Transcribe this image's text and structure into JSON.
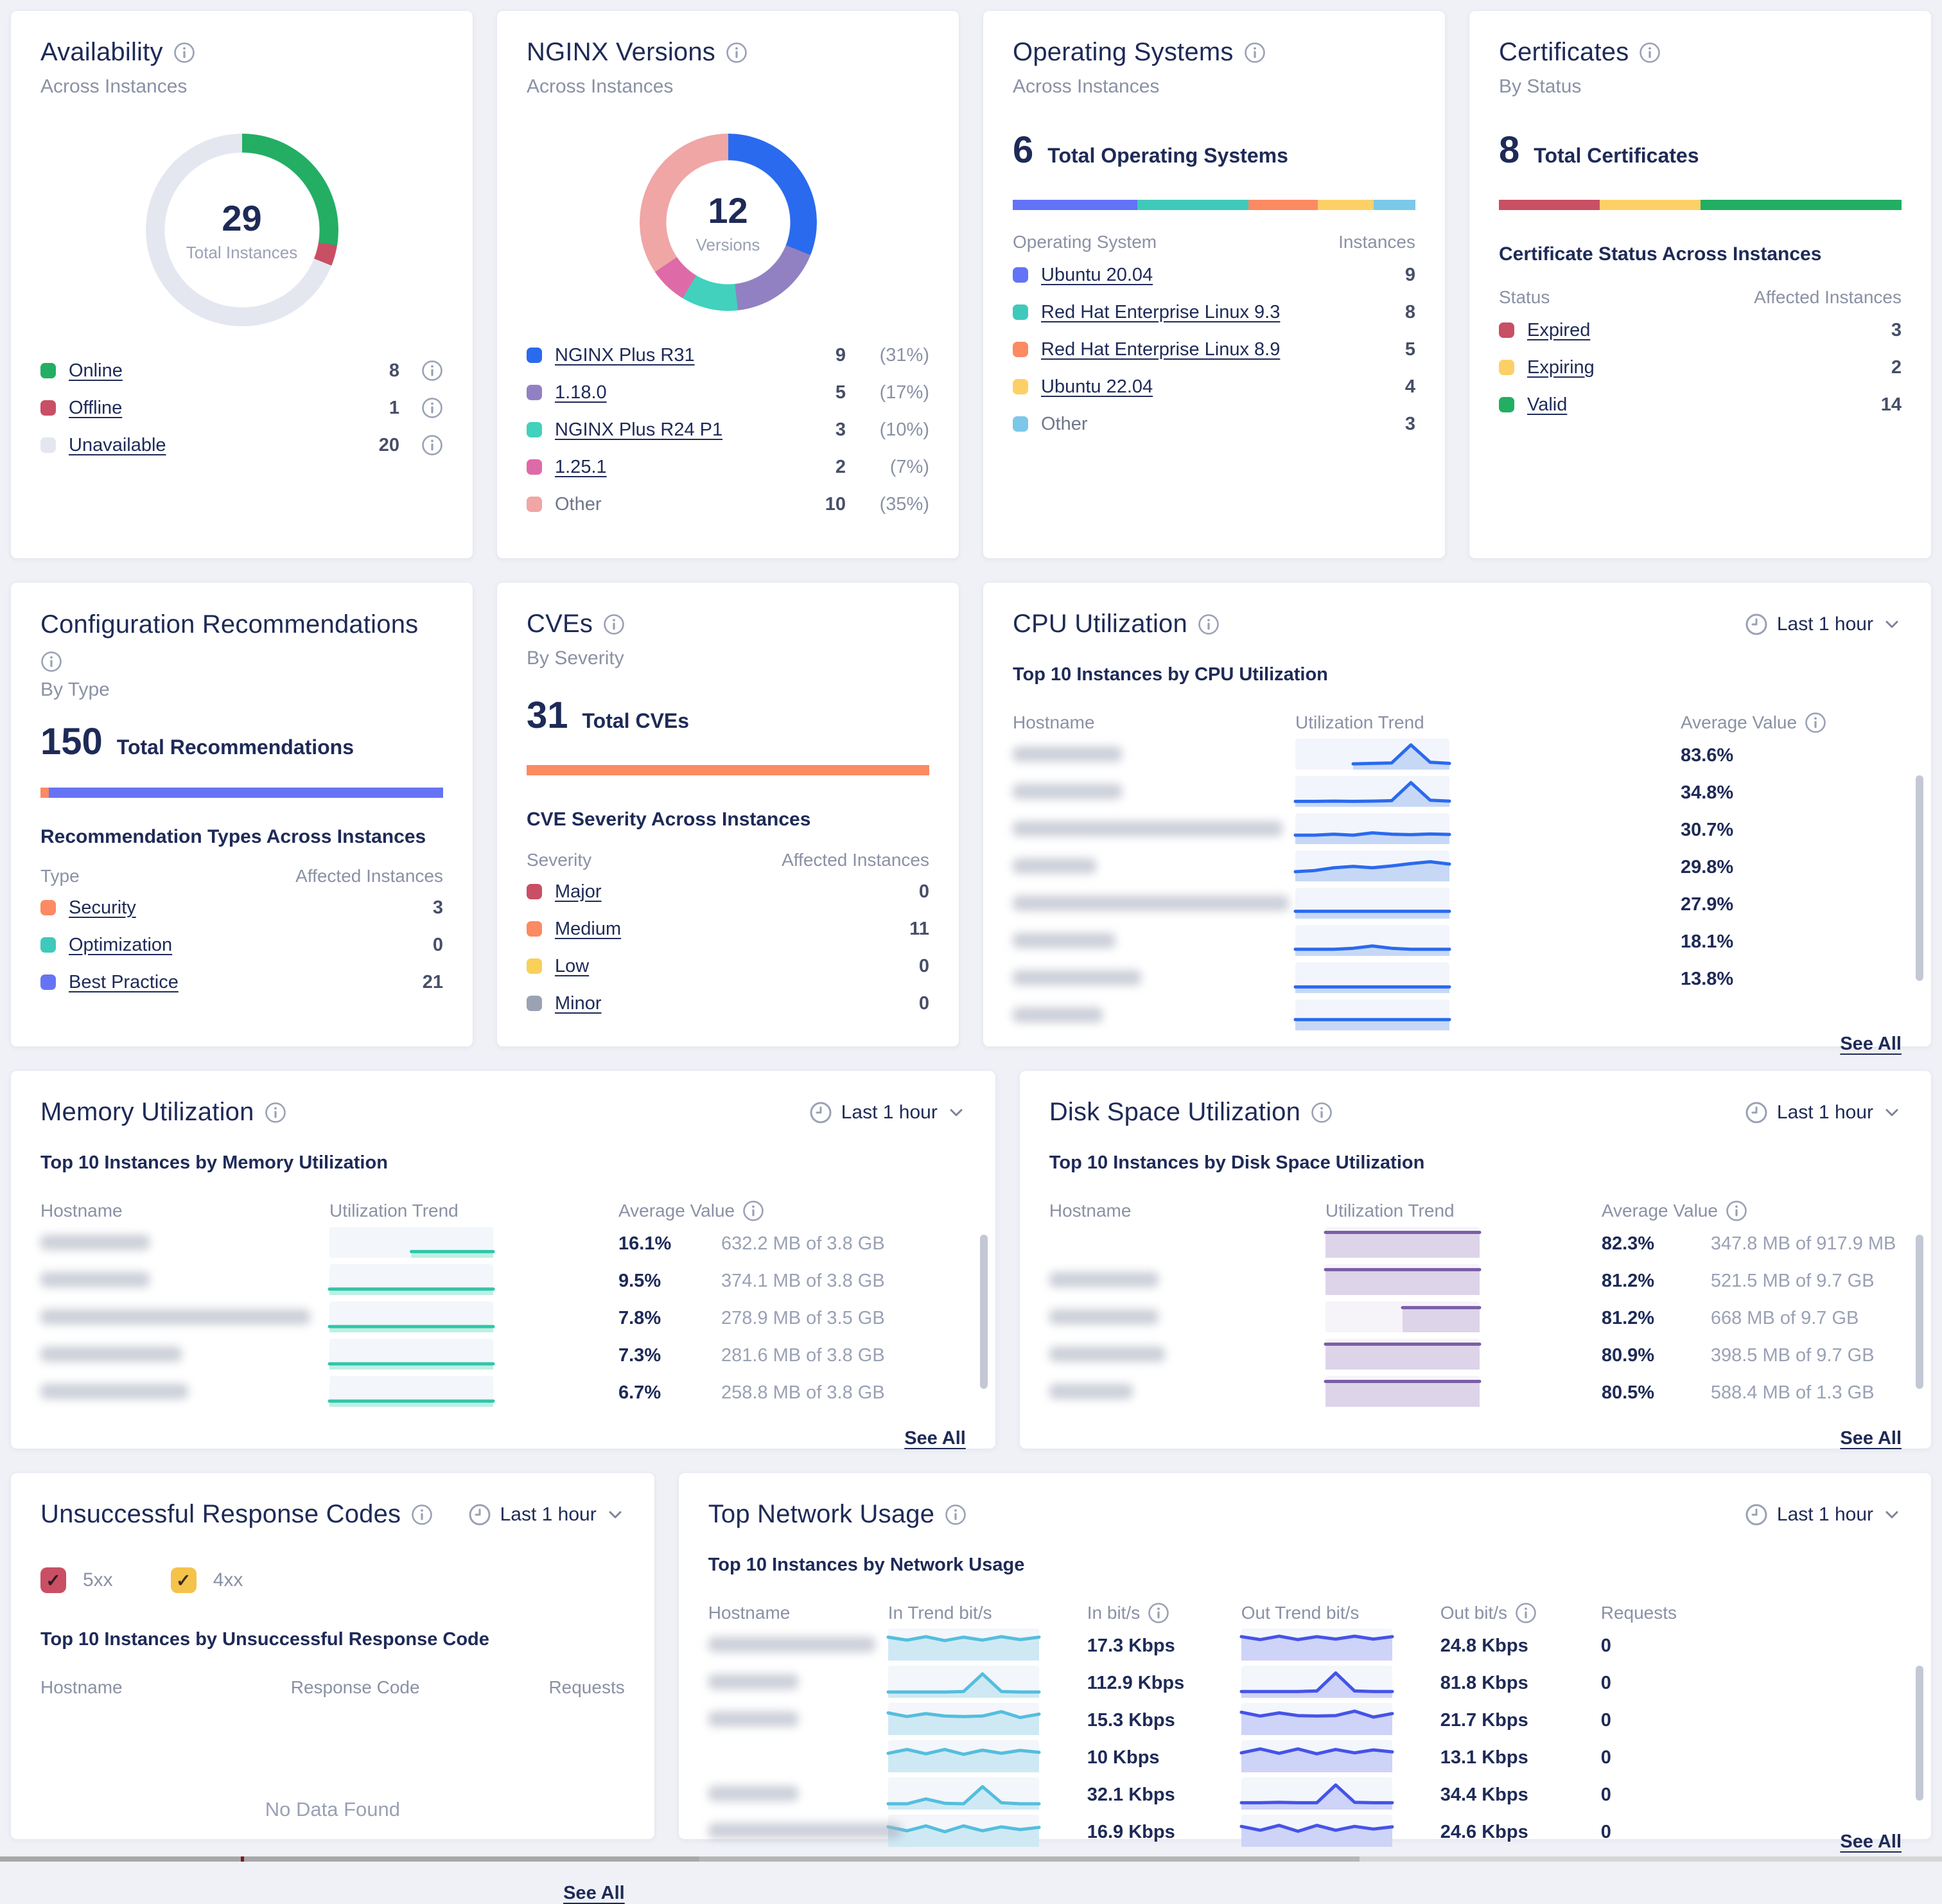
{
  "labels": {
    "see_all": "See All",
    "time_range": "Last 1 hour",
    "hostname": "Hostname",
    "utilization_trend": "Utilization Trend",
    "average_value": "Average Value",
    "no_data": "No Data Found"
  },
  "cards": {
    "availability": {
      "title": "Availability",
      "subtitle": "Across Instances",
      "total": "29",
      "total_label": "Total Instances",
      "chart_data": {
        "type": "donut",
        "segments": [
          {
            "label": "Online",
            "value": 8,
            "color": "#23ae64"
          },
          {
            "label": "Offline",
            "value": 1,
            "color": "#c94f64"
          },
          {
            "label": "Unavailable",
            "value": 20,
            "color": "#e4e7f0"
          }
        ]
      },
      "legend": [
        {
          "label": "Online",
          "value": "8",
          "color": "#23ae64",
          "link": true,
          "info": true
        },
        {
          "label": "Offline",
          "value": "1",
          "color": "#c94f64",
          "link": true,
          "info": true
        },
        {
          "label": "Unavailable",
          "value": "20",
          "color": "#e4e7f0",
          "link": true,
          "info": true
        }
      ]
    },
    "nginx_versions": {
      "title": "NGINX Versions",
      "subtitle": "Across Instances",
      "total": "12",
      "total_label": "Versions",
      "chart_data": {
        "type": "donut",
        "segments": [
          {
            "label": "NGINX Plus R31",
            "value": 9,
            "color": "#2a6aee"
          },
          {
            "label": "1.18.0",
            "value": 5,
            "color": "#9181c2"
          },
          {
            "label": "NGINX Plus R24 P1",
            "value": 3,
            "color": "#41d1bd"
          },
          {
            "label": "1.25.1",
            "value": 2,
            "color": "#df6aa8"
          },
          {
            "label": "Other",
            "value": 10,
            "color": "#efa6a5"
          }
        ]
      },
      "legend": [
        {
          "label": "NGINX Plus R31",
          "value": "9",
          "pct": "(31%)",
          "color": "#2a6aee",
          "link": true
        },
        {
          "label": "1.18.0",
          "value": "5",
          "pct": "(17%)",
          "color": "#9181c2",
          "link": true
        },
        {
          "label": "NGINX Plus R24 P1",
          "value": "3",
          "pct": "(10%)",
          "color": "#41d1bd",
          "link": true
        },
        {
          "label": "1.25.1",
          "value": "2",
          "pct": "(7%)",
          "color": "#df6aa8",
          "link": true
        },
        {
          "label": "Other",
          "value": "10",
          "pct": "(35%)",
          "color": "#efa6a5",
          "link": false
        }
      ]
    },
    "operating_systems": {
      "title": "Operating Systems",
      "subtitle": "Across Instances",
      "total": "6",
      "total_label": "Total Operating Systems",
      "columns": [
        "Operating System",
        "Instances"
      ],
      "chart_data": {
        "type": "stacked-bar",
        "segments": [
          {
            "label": "Ubuntu 20.04",
            "value": 9,
            "pct": 31.0,
            "color": "#6273f7"
          },
          {
            "label": "Red Hat Enterprise Linux 9.3",
            "value": 8,
            "pct": 27.6,
            "color": "#3fc9bb"
          },
          {
            "label": "Red Hat Enterprise Linux 8.9",
            "value": 5,
            "pct": 17.2,
            "color": "#fc8a63"
          },
          {
            "label": "Ubuntu 22.04",
            "value": 4,
            "pct": 13.8,
            "color": "#fdd067"
          },
          {
            "label": "Other",
            "value": 3,
            "pct": 10.4,
            "color": "#7cc8e8"
          }
        ]
      },
      "legend": [
        {
          "label": "Ubuntu 20.04",
          "value": "9",
          "color": "#6273f7",
          "link": true
        },
        {
          "label": "Red Hat Enterprise Linux 9.3",
          "value": "8",
          "color": "#3fc9bb",
          "link": true
        },
        {
          "label": "Red Hat Enterprise Linux 8.9",
          "value": "5",
          "color": "#fc8a63",
          "link": true
        },
        {
          "label": "Ubuntu 22.04",
          "value": "4",
          "color": "#fdd067",
          "link": true
        },
        {
          "label": "Other",
          "value": "3",
          "color": "#7cc8e8",
          "link": false
        }
      ]
    },
    "certificates": {
      "title": "Certificates",
      "subtitle": "By Status",
      "total": "8",
      "total_label": "Total Certificates",
      "subhead": "Certificate Status Across Instances",
      "columns": [
        "Status",
        "Affected Instances"
      ],
      "chart_data": {
        "type": "stacked-bar",
        "segments": [
          {
            "label": "Expired",
            "pct": 25,
            "color": "#c94f64"
          },
          {
            "label": "Expiring",
            "pct": 25,
            "color": "#fdd067"
          },
          {
            "label": "Valid",
            "pct": 50,
            "color": "#22ae63"
          }
        ]
      },
      "legend": [
        {
          "label": "Expired",
          "value": "3",
          "color": "#c94f64",
          "link": true
        },
        {
          "label": "Expiring",
          "value": "2",
          "color": "#fdd067",
          "link": true
        },
        {
          "label": "Valid",
          "value": "14",
          "color": "#22ae63",
          "link": true
        }
      ]
    },
    "config_recommendations": {
      "title": "Configuration Recommendations",
      "subtitle": "By Type",
      "total": "150",
      "total_label": "Total Recommendations",
      "subhead": "Recommendation Types Across Instances",
      "columns": [
        "Type",
        "Affected Instances"
      ],
      "chart_data": {
        "type": "stacked-bar",
        "segments": [
          {
            "label": "Security",
            "pct": 2,
            "color": "#fc8a63"
          },
          {
            "label": "Best Practice",
            "pct": 98,
            "color": "#6674f4"
          }
        ]
      },
      "legend": [
        {
          "label": "Security",
          "value": "3",
          "color": "#fc8a63",
          "link": true
        },
        {
          "label": "Optimization",
          "value": "0",
          "color": "#3fc9bb",
          "link": true
        },
        {
          "label": "Best Practice",
          "value": "21",
          "color": "#6674f4",
          "link": true
        }
      ]
    },
    "cves": {
      "title": "CVEs",
      "subtitle": "By Severity",
      "total": "31",
      "total_label": "Total CVEs",
      "subhead": "CVE Severity Across Instances",
      "columns": [
        "Severity",
        "Affected Instances"
      ],
      "chart_data": {
        "type": "stacked-bar",
        "segments": [
          {
            "label": "Medium",
            "pct": 100,
            "color": "#fc8a63"
          }
        ]
      },
      "legend": [
        {
          "label": "Major",
          "value": "0",
          "color": "#c94f64",
          "link": true
        },
        {
          "label": "Medium",
          "value": "11",
          "color": "#fc8a63",
          "link": true
        },
        {
          "label": "Low",
          "value": "0",
          "color": "#f8d05a",
          "link": true
        },
        {
          "label": "Minor",
          "value": "0",
          "color": "#9aa2b4",
          "link": true
        }
      ]
    },
    "cpu": {
      "title": "CPU Utilization",
      "heading": "Top 10 Instances by CPU Utilization",
      "chart_data": {
        "type": "table-sparklines",
        "line_color": "#2a6aee",
        "fill_color": "#c7d8f7",
        "box_bg": "#f2f5fb",
        "rows": [
          {
            "avg": "83.6%",
            "mask_w": 170,
            "trend": [
              null,
              null,
              null,
              0.08,
              0.1,
              0.12,
              0.9,
              0.15,
              0.1
            ]
          },
          {
            "avg": "34.8%",
            "mask_w": 170,
            "trend": [
              0.07,
              0.07,
              0.08,
              0.07,
              0.08,
              0.1,
              0.88,
              0.12,
              0.08
            ]
          },
          {
            "avg": "30.7%",
            "mask_w": 420,
            "trend": [
              0.22,
              0.22,
              0.26,
              0.22,
              0.32,
              0.26,
              0.24,
              0.27,
              0.25
            ]
          },
          {
            "avg": "29.8%",
            "mask_w": 130,
            "trend": [
              0.25,
              0.3,
              0.42,
              0.48,
              0.42,
              0.5,
              0.6,
              0.68,
              0.58
            ]
          },
          {
            "avg": "27.9%",
            "mask_w": 430,
            "trend": [
              0.15,
              0.15,
              0.15,
              0.15,
              0.15,
              0.15,
              0.15,
              0.15,
              0.15
            ]
          },
          {
            "avg": "18.1%",
            "mask_w": 160,
            "trend": [
              0.12,
              0.12,
              0.12,
              0.16,
              0.26,
              0.16,
              0.12,
              0.12,
              0.12
            ]
          },
          {
            "avg": "13.8%",
            "mask_w": 200,
            "trend": [
              0.1,
              0.1,
              0.1,
              0.1,
              0.1,
              0.1,
              0.1,
              0.1,
              0.1
            ]
          },
          {
            "avg": "",
            "mask_w": 140,
            "trend": [
              0.3,
              0.3,
              0.3,
              0.3,
              0.3,
              0.3,
              0.3,
              0.3,
              0.3
            ]
          }
        ]
      }
    },
    "memory": {
      "title": "Memory Utilization",
      "heading": "Top 10 Instances by Memory Utilization",
      "chart_data": {
        "type": "table-sparklines",
        "line_color": "#2cc7a9",
        "fill_color": "#bfeee4",
        "box_bg": "#f3f6fa",
        "rows": [
          {
            "avg": "16.1%",
            "size": "632.2 MB of 3.8 GB",
            "mask_w": 170,
            "trend": [
              null,
              null,
              null,
              null,
              0.1,
              0.1,
              0.1,
              0.1,
              0.1
            ]
          },
          {
            "avg": "9.5%",
            "size": "374.1 MB of 3.8 GB",
            "mask_w": 170,
            "trend": [
              0.09,
              0.09,
              0.09,
              0.09,
              0.09,
              0.09,
              0.09,
              0.09,
              0.09
            ]
          },
          {
            "avg": "7.8%",
            "size": "278.9 MB of 3.5 GB",
            "mask_w": 420,
            "trend": [
              0.08,
              0.08,
              0.08,
              0.08,
              0.08,
              0.08,
              0.08,
              0.08,
              0.08
            ]
          },
          {
            "avg": "7.3%",
            "size": "281.6 MB of 3.8 GB",
            "mask_w": 220,
            "trend": [
              0.08,
              0.08,
              0.08,
              0.08,
              0.08,
              0.08,
              0.08,
              0.08,
              0.08
            ]
          },
          {
            "avg": "6.7%",
            "size": "258.8 MB of 3.8 GB",
            "mask_w": 230,
            "trend": [
              0.08,
              0.08,
              0.08,
              0.08,
              0.08,
              0.08,
              0.08,
              0.08,
              0.08
            ]
          }
        ]
      }
    },
    "disk": {
      "title": "Disk Space Utilization",
      "heading": "Top 10 Instances by Disk Space Utilization",
      "chart_data": {
        "type": "table-sparklines",
        "line_color": "#7b5ea7",
        "fill_color": "#ddd4e9",
        "box_bg": "#f6f4f9",
        "rows": [
          {
            "avg": "82.3%",
            "size": "347.8 MB of 917.9 MB",
            "mask_w": 0,
            "trend": [
              0.93,
              0.93,
              0.93,
              0.93,
              0.93,
              0.93,
              0.93,
              0.93,
              0.93
            ]
          },
          {
            "avg": "81.2%",
            "size": "521.5 MB of 9.7 GB",
            "mask_w": 170,
            "trend": [
              0.93,
              0.93,
              0.93,
              0.93,
              0.93,
              0.93,
              0.93,
              0.93,
              0.93
            ]
          },
          {
            "avg": "81.2%",
            "size": "668 MB of 9.7 GB",
            "mask_w": 170,
            "trend": [
              null,
              null,
              null,
              null,
              0.9,
              0.9,
              0.9,
              0.9,
              0.9
            ]
          },
          {
            "avg": "80.9%",
            "size": "398.5 MB of 9.7 GB",
            "mask_w": 180,
            "trend": [
              0.93,
              0.93,
              0.93,
              0.93,
              0.93,
              0.93,
              0.93,
              0.93,
              0.93
            ]
          },
          {
            "avg": "80.5%",
            "size": "588.4 MB of 1.3 GB",
            "mask_w": 130,
            "trend": [
              0.93,
              0.93,
              0.93,
              0.93,
              0.93,
              0.93,
              0.93,
              0.93,
              0.93
            ]
          }
        ]
      }
    },
    "response_codes": {
      "title": "Unsuccessful Response Codes",
      "heading": "Top 10 Instances by Unsuccessful Response Code",
      "columns": [
        "Hostname",
        "Response Code",
        "Requests"
      ],
      "empty": "No Data Found",
      "filters": [
        {
          "label": "5xx",
          "color": "#c94f64",
          "checked": true
        },
        {
          "label": "4xx",
          "color": "#f5c24b",
          "checked": true
        }
      ]
    },
    "network": {
      "title": "Top Network Usage",
      "heading": "Top 10 Instances by Network Usage",
      "columns": [
        "Hostname",
        "In Trend bit/s",
        "In bit/s",
        "Out Trend bit/s",
        "Out bit/s",
        "Requests"
      ],
      "chart_data": {
        "type": "table-sparklines",
        "in_line": "#54bede",
        "in_fill": "#cfe9f4",
        "out_line": "#4553e8",
        "out_fill": "#ced3f8",
        "box_bg": "#f3f6fa",
        "rows": [
          {
            "in": "17.3 Kbps",
            "out": "24.8 Kbps",
            "req": "0",
            "mask_w": 260,
            "in_trend": [
              0.8,
              0.68,
              0.82,
              0.66,
              0.8,
              0.68,
              0.82,
              0.7,
              0.8
            ],
            "out_trend": [
              0.82,
              0.7,
              0.84,
              0.7,
              0.82,
              0.72,
              0.84,
              0.72,
              0.82
            ]
          },
          {
            "in": "112.9 Kbps",
            "out": "81.8 Kbps",
            "req": "0",
            "mask_w": 140,
            "in_trend": [
              0.08,
              0.08,
              0.08,
              0.08,
              0.1,
              0.82,
              0.1,
              0.08,
              0.08
            ],
            "out_trend": [
              0.1,
              0.1,
              0.1,
              0.1,
              0.12,
              0.86,
              0.12,
              0.1,
              0.1
            ]
          },
          {
            "in": "15.3 Kbps",
            "out": "21.7 Kbps",
            "req": "0",
            "mask_w": 140,
            "in_trend": [
              0.75,
              0.6,
              0.72,
              0.62,
              0.6,
              0.62,
              0.8,
              0.56,
              0.7
            ],
            "out_trend": [
              0.78,
              0.62,
              0.75,
              0.64,
              0.62,
              0.64,
              0.82,
              0.58,
              0.72
            ]
          },
          {
            "in": "10 Kbps",
            "out": "13.1 Kbps",
            "req": "0",
            "mask_w": 0,
            "in_trend": [
              0.62,
              0.78,
              0.6,
              0.78,
              0.58,
              0.75,
              0.62,
              0.74,
              0.66
            ],
            "out_trend": [
              0.64,
              0.8,
              0.62,
              0.8,
              0.6,
              0.78,
              0.64,
              0.76,
              0.68
            ]
          },
          {
            "in": "32.1 Kbps",
            "out": "34.4 Kbps",
            "req": "0",
            "mask_w": 140,
            "in_trend": [
              0.08,
              0.08,
              0.28,
              0.1,
              0.08,
              0.78,
              0.12,
              0.08,
              0.08
            ],
            "out_trend": [
              0.12,
              0.12,
              0.14,
              0.12,
              0.12,
              0.85,
              0.14,
              0.12,
              0.12
            ]
          },
          {
            "in": "16.9 Kbps",
            "out": "24.6 Kbps",
            "req": "0",
            "mask_w": 300,
            "in_trend": [
              0.66,
              0.5,
              0.7,
              0.46,
              0.7,
              0.5,
              0.66,
              0.55,
              0.64
            ],
            "out_trend": [
              0.68,
              0.52,
              0.72,
              0.48,
              0.72,
              0.52,
              0.68,
              0.57,
              0.66
            ]
          }
        ]
      }
    }
  }
}
